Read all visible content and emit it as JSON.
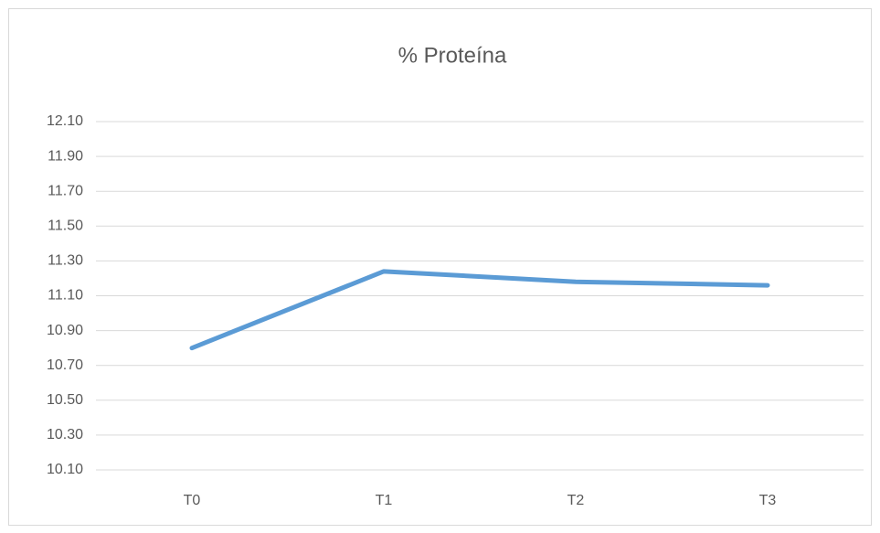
{
  "chart_data": {
    "type": "line",
    "title": "% Proteína",
    "categories": [
      "T0",
      "T1",
      "T2",
      "T3"
    ],
    "values": [
      10.8,
      11.24,
      11.18,
      11.16
    ],
    "color": "#5b9bd5",
    "ylim": [
      10.1,
      12.1
    ],
    "yticks": [
      {
        "value": 10.1,
        "label": "10.10"
      },
      {
        "value": 10.3,
        "label": "10.30"
      },
      {
        "value": 10.5,
        "label": "10.50"
      },
      {
        "value": 10.7,
        "label": "10.70"
      },
      {
        "value": 10.9,
        "label": "10.90"
      },
      {
        "value": 11.1,
        "label": "11.10"
      },
      {
        "value": 11.3,
        "label": "11.30"
      },
      {
        "value": 11.5,
        "label": "11.50"
      },
      {
        "value": 11.7,
        "label": "11.70"
      },
      {
        "value": 11.9,
        "label": "11.90"
      },
      {
        "value": 12.1,
        "label": "12.10"
      }
    ],
    "grid": true
  }
}
